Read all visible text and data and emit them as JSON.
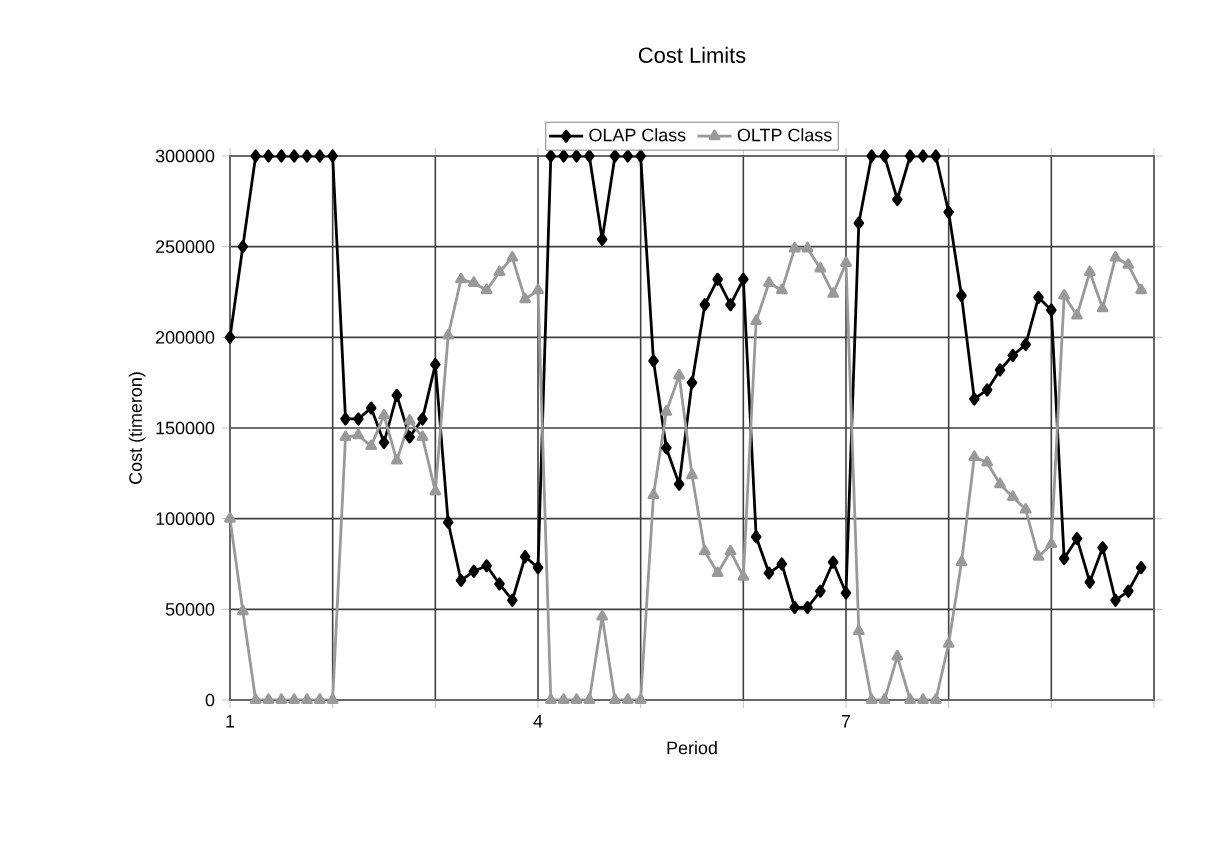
{
  "chart_data": {
    "type": "line",
    "title": "Cost Limits",
    "xlabel": "Period",
    "ylabel": "Cost (timeron)",
    "x": [
      1,
      1.125,
      1.25,
      1.375,
      1.5,
      1.625,
      1.75,
      1.875,
      2,
      2.125,
      2.25,
      2.375,
      2.5,
      2.625,
      2.75,
      2.875,
      3,
      3.125,
      3.25,
      3.375,
      3.5,
      3.625,
      3.75,
      3.875,
      4,
      4.125,
      4.25,
      4.375,
      4.5,
      4.625,
      4.75,
      4.875,
      5,
      5.125,
      5.25,
      5.375,
      5.5,
      5.625,
      5.75,
      5.875,
      6,
      6.125,
      6.25,
      6.375,
      6.5,
      6.625,
      6.75,
      6.875,
      7,
      7.125,
      7.25,
      7.375,
      7.5,
      7.625,
      7.75,
      7.875,
      8,
      8.125,
      8.25,
      8.375,
      8.5,
      8.625,
      8.75,
      8.875,
      9,
      9.125,
      9.25,
      9.375,
      9.5,
      9.625,
      9.75,
      9.875
    ],
    "series": [
      {
        "name": "OLAP Class",
        "color": "#000000",
        "marker": "diamond",
        "values": [
          200000,
          250000,
          300000,
          300000,
          300000,
          300000,
          300000,
          300000,
          300000,
          155000,
          155000,
          161000,
          142000,
          168000,
          145000,
          155000,
          185000,
          98000,
          66000,
          71000,
          74000,
          64000,
          55000,
          79000,
          73000,
          300000,
          300000,
          300000,
          300000,
          254000,
          300000,
          300000,
          300000,
          187000,
          139000,
          119000,
          175000,
          218000,
          232000,
          218000,
          232000,
          90000,
          70000,
          75000,
          51000,
          51000,
          60000,
          76000,
          59000,
          263000,
          300000,
          300000,
          276000,
          300000,
          300000,
          300000,
          269000,
          223000,
          166000,
          171000,
          182000,
          190000,
          196000,
          222000,
          215000,
          78000,
          89000,
          65000,
          84000,
          55000,
          60000,
          73000
        ]
      },
      {
        "name": "OLTP Class",
        "color": "#999999",
        "marker": "triangle",
        "values": [
          100000,
          49000,
          0,
          0,
          0,
          0,
          0,
          0,
          0,
          145000,
          146000,
          140000,
          157000,
          132000,
          154000,
          145000,
          115000,
          201000,
          232000,
          230000,
          226000,
          236000,
          244000,
          221000,
          226000,
          0,
          0,
          0,
          0,
          46000,
          0,
          0,
          0,
          113000,
          159000,
          179000,
          124000,
          82000,
          70000,
          82000,
          68000,
          209000,
          230000,
          226000,
          249000,
          249000,
          238000,
          224000,
          241000,
          38000,
          0,
          0,
          24000,
          0,
          0,
          0,
          31000,
          76000,
          134000,
          131000,
          119000,
          112000,
          105000,
          79000,
          86000,
          223000,
          212000,
          236000,
          216000,
          244000,
          240000,
          226000
        ]
      }
    ],
    "xlim": [
      1,
      10
    ],
    "xticks": [
      1,
      {
        "value": 2,
        "label": null
      },
      {
        "value": 3,
        "label": null
      },
      4,
      {
        "value": 5,
        "label": null
      },
      {
        "value": 6,
        "label": null
      },
      7,
      {
        "value": 8,
        "label": null
      },
      {
        "value": 9,
        "label": null
      },
      {
        "value": 10,
        "label": null
      }
    ],
    "ylim": [
      0,
      300000
    ],
    "yticks": [
      0,
      50000,
      100000,
      150000,
      200000,
      250000,
      300000
    ],
    "grid": true,
    "legend": "top",
    "line_style": "solid"
  }
}
